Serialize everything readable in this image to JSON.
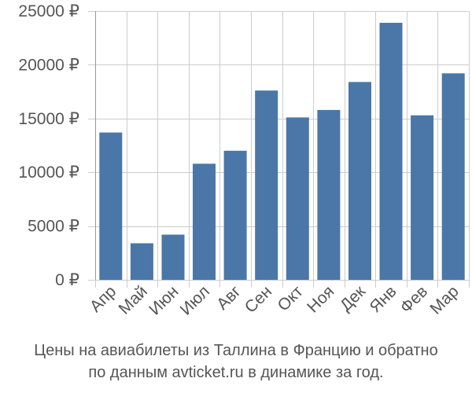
{
  "caption": {
    "line1": "Цены на авиабилеты из Таллина в Францию и обратно",
    "line2": "по данным avticket.ru в динамике за год."
  },
  "chart_data": {
    "type": "bar",
    "categories": [
      "Апр",
      "Май",
      "Июн",
      "Июл",
      "Авг",
      "Сен",
      "Окт",
      "Ноя",
      "Дек",
      "Янв",
      "Фев",
      "Мар"
    ],
    "values": [
      13700,
      3400,
      4200,
      10800,
      12000,
      17600,
      15100,
      15800,
      18400,
      23900,
      15300,
      19200
    ],
    "title": "",
    "xlabel": "",
    "ylabel": "",
    "ylim": [
      0,
      25000
    ],
    "y_ticks": [
      {
        "value": 0,
        "label": "0 ₽"
      },
      {
        "value": 5000,
        "label": "5000 ₽"
      },
      {
        "value": 10000,
        "label": "10000 ₽"
      },
      {
        "value": 15000,
        "label": "15000 ₽"
      },
      {
        "value": 20000,
        "label": "20000 ₽"
      },
      {
        "value": 25000,
        "label": "25000 ₽"
      }
    ],
    "grid": true,
    "bar_color": "#4a77a8",
    "grid_color": "#cccccc",
    "axis_color": "#999999",
    "tick_label_color": "#555555",
    "x_label_rotation_deg": -45
  }
}
